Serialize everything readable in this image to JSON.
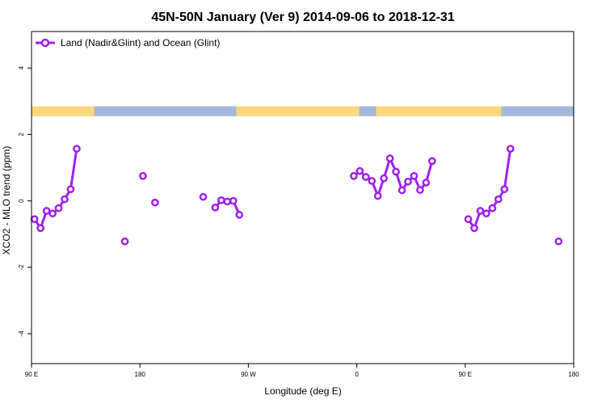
{
  "chart_data": {
    "type": "line",
    "title": "45N-50N January (Ver 9)   2014-09-06 to 2018-12-31",
    "xlabel": "Longitude (deg E)",
    "ylabel": "XCO2 - MLO trend (ppm)",
    "xlim": [
      90,
      540
    ],
    "ylim": [
      -4.9,
      5.1
    ],
    "x_ticks": [
      {
        "value": 90,
        "label": "90 E"
      },
      {
        "value": 180,
        "label": "180"
      },
      {
        "value": 270,
        "label": "90 W"
      },
      {
        "value": 360,
        "label": "0"
      },
      {
        "value": 450,
        "label": "90 E"
      },
      {
        "value": 540,
        "label": "180"
      }
    ],
    "y_ticks": [
      {
        "value": -4,
        "label": "-4"
      },
      {
        "value": -2,
        "label": "-2"
      },
      {
        "value": 0,
        "label": "0"
      },
      {
        "value": 2,
        "label": "2"
      },
      {
        "value": 4,
        "label": "4"
      }
    ],
    "legend": {
      "position": "top-left"
    },
    "series": [
      {
        "name": "Land (Nadir&Glint) and Ocean (Glint)",
        "color": "#a020f0",
        "segments": [
          [
            [
              92.5,
              -0.55
            ],
            [
              97.5,
              -0.82
            ],
            [
              102.5,
              -0.3
            ],
            [
              107.5,
              -0.38
            ],
            [
              112.5,
              -0.22
            ],
            [
              117.5,
              0.05
            ],
            [
              122.5,
              0.35
            ],
            [
              127.5,
              1.57
            ]
          ],
          [
            [
              167.5,
              -1.22
            ]
          ],
          [
            [
              182.5,
              0.75
            ]
          ],
          [
            [
              192.5,
              -0.05
            ]
          ],
          [
            [
              232.5,
              0.12
            ]
          ],
          [
            [
              242.5,
              -0.2
            ],
            [
              247.5,
              0.02
            ],
            [
              252.5,
              -0.02
            ],
            [
              257.5,
              0.0
            ],
            [
              262.5,
              -0.42
            ]
          ],
          [
            [
              357.5,
              0.75
            ],
            [
              362.5,
              0.9
            ],
            [
              367.5,
              0.72
            ],
            [
              372.5,
              0.6
            ],
            [
              377.5,
              0.15
            ],
            [
              382.5,
              0.68
            ],
            [
              387.5,
              1.28
            ],
            [
              392.5,
              0.88
            ],
            [
              397.5,
              0.32
            ],
            [
              402.5,
              0.58
            ],
            [
              407.5,
              0.75
            ],
            [
              412.5,
              0.33
            ],
            [
              417.5,
              0.55
            ],
            [
              422.5,
              1.2
            ]
          ],
          [
            [
              452.5,
              -0.55
            ],
            [
              457.5,
              -0.82
            ],
            [
              462.5,
              -0.3
            ],
            [
              467.5,
              -0.38
            ],
            [
              472.5,
              -0.22
            ],
            [
              477.5,
              0.05
            ],
            [
              482.5,
              0.35
            ],
            [
              487.5,
              1.57
            ]
          ],
          [
            [
              527.5,
              -1.22
            ]
          ]
        ]
      }
    ],
    "land_ocean_band": {
      "y_range": [
        2.55,
        2.85
      ],
      "ocean_color": "#a3b8dc",
      "land_color": "#fcd67b",
      "ocean_intervals": [
        [
          142,
          260
        ],
        [
          362,
          376
        ],
        [
          480,
          540
        ]
      ]
    }
  }
}
